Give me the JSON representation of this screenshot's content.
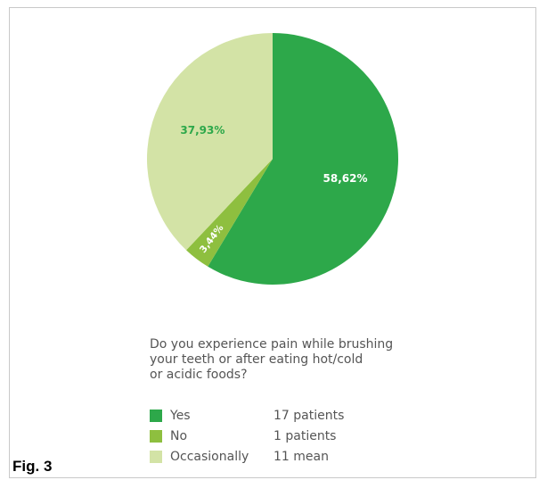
{
  "chart_data": {
    "type": "pie",
    "title": "Do you experience pain while brushing your teeth or after eating hot/cold or acidic foods?",
    "title_lines": [
      "Do you experience pain while brushing",
      "your teeth or after eating hot/cold",
      "or acidic foods?"
    ],
    "slices": [
      {
        "label": "Yes",
        "value": 58.62,
        "display": "58,62%",
        "count_text": "17 patients",
        "color": "#2da84a",
        "text_color": "#ffffff"
      },
      {
        "label": "No",
        "value": 3.44,
        "display": "3,44%",
        "count_text": "1 patients",
        "color": "#8ebf3f",
        "text_color": "#ffffff"
      },
      {
        "label": "Occasionally",
        "value": 37.93,
        "display": "37,93%",
        "count_text": "11 mean",
        "color": "#d3e3a6",
        "text_color": "#2da84a"
      }
    ],
    "legend_position": "bottom"
  },
  "figure_label": "Fig. 3"
}
